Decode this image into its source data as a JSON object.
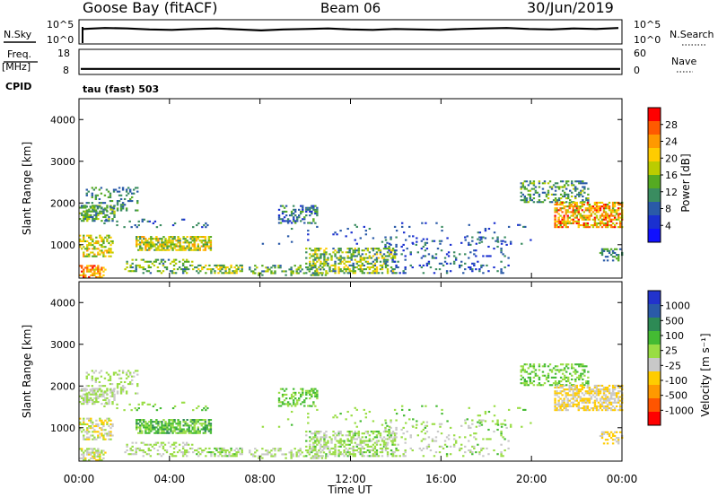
{
  "header": {
    "station": "Goose Bay (fitACF)",
    "beam": "Beam 06",
    "date": "30/Jun/2019"
  },
  "side_labels": {
    "nsky": "N.Sky",
    "nsearch": "N.Search",
    "freq_line1": "Freq.",
    "freq_line2": "[MHz]",
    "nave": "Nave",
    "cpid": "CPID",
    "cpid_value": "tau (fast) 503"
  },
  "colors": {
    "black": "#000000",
    "noise": "#000000"
  },
  "chart_data": [
    {
      "type": "line",
      "name": "noise-panel",
      "left_axis_ticks": [
        "10^5",
        "10^0"
      ],
      "right_axis_ticks": [
        "10^5",
        "10^0"
      ],
      "series": [
        {
          "values": [
            3.1,
            3.3,
            3.2,
            3.0,
            2.9,
            3.1,
            3.2,
            3.0,
            2.8,
            3.0,
            3.1,
            3.2,
            3.0,
            2.9,
            3.1,
            3.0,
            2.9,
            3.1,
            3.2,
            3.3,
            3.1,
            3.0,
            3.2,
            3.1,
            3.3
          ]
        }
      ],
      "ylim": [
        0,
        5
      ]
    },
    {
      "type": "line",
      "name": "frequency-panel",
      "left_axis_ticks": [
        "18",
        "8"
      ],
      "right_axis_ticks": [
        "60",
        "0"
      ],
      "ylim": [
        8,
        18
      ],
      "series": [
        {
          "values": [
            10.2,
            10.2,
            10.2,
            10.2,
            10.2,
            10.2,
            10.2,
            10.2,
            10.2,
            10.2,
            10.2,
            10.2,
            10.2
          ]
        }
      ]
    },
    {
      "type": "heatmap",
      "name": "power-panel",
      "ylabel": "Slant Range [km]",
      "yticks": [
        "4000",
        "3000",
        "2000",
        "1000"
      ],
      "ylim": [
        200,
        4500
      ],
      "colorbar_label": "Power [dB]",
      "colorbar_ticks": [
        "28",
        "24",
        "20",
        "16",
        "12",
        "8",
        "4"
      ],
      "colorbar_colors": [
        "#ff0000",
        "#ff5a00",
        "#ff9900",
        "#ffcc00",
        "#bbcc00",
        "#55aa22",
        "#3a8c60",
        "#2a5aa8",
        "#1a30d0",
        "#1010ff"
      ]
    },
    {
      "type": "heatmap",
      "name": "velocity-panel",
      "ylabel": "Slant Range [km]",
      "yticks": [
        "4000",
        "3000",
        "2000",
        "1000"
      ],
      "ylim": [
        200,
        4500
      ],
      "colorbar_label": "Velocity [m s⁻¹]",
      "colorbar_ticks": [
        "1000",
        "500",
        "100",
        "25",
        "-25",
        "-100",
        "-500",
        "-1000"
      ],
      "colorbar_colors": [
        "#2233cc",
        "#2a5aa8",
        "#2d8a55",
        "#44bb33",
        "#99dd44",
        "#c8c8c8",
        "#ffcc00",
        "#ff9900",
        "#ff5500",
        "#ff0000"
      ],
      "xlabel": "Time UT",
      "xticks": [
        "00:00",
        "04:00",
        "08:00",
        "12:00",
        "16:00",
        "20:00",
        "00:00"
      ],
      "xlim": [
        0,
        24
      ]
    }
  ],
  "scatter_regions": [
    {
      "t0": 0.0,
      "t1": 1.6,
      "r0": 1550,
      "r1": 1950,
      "density": 0.55,
      "pow": [
        0.25,
        0.55
      ],
      "vel": [
        0.4,
        0.6
      ]
    },
    {
      "t0": 0.3,
      "t1": 2.6,
      "r0": 1800,
      "r1": 2350,
      "density": 0.25,
      "pow": [
        0.2,
        0.5
      ],
      "vel": [
        0.45,
        0.6
      ]
    },
    {
      "t0": 0.0,
      "t1": 1.5,
      "r0": 700,
      "r1": 1200,
      "density": 0.45,
      "pow": [
        0.4,
        0.75
      ],
      "vel": [
        0.35,
        0.55
      ]
    },
    {
      "t0": 0.0,
      "t1": 1.2,
      "r0": 200,
      "r1": 500,
      "density": 0.6,
      "pow": [
        0.55,
        0.95
      ],
      "vel": [
        0.35,
        0.6
      ]
    },
    {
      "t0": 2.5,
      "t1": 5.8,
      "r0": 850,
      "r1": 1200,
      "density": 0.7,
      "pow": [
        0.35,
        0.75
      ],
      "vel": [
        0.5,
        0.75
      ]
    },
    {
      "t0": 2.0,
      "t1": 5.0,
      "r0": 300,
      "r1": 650,
      "density": 0.35,
      "pow": [
        0.25,
        0.6
      ],
      "vel": [
        0.4,
        0.6
      ]
    },
    {
      "t0": 5.0,
      "t1": 7.2,
      "r0": 300,
      "r1": 500,
      "density": 0.45,
      "pow": [
        0.3,
        0.7
      ],
      "vel": [
        0.45,
        0.62
      ]
    },
    {
      "t0": 8.8,
      "t1": 10.5,
      "r0": 1500,
      "r1": 1950,
      "density": 0.4,
      "pow": [
        0.15,
        0.45
      ],
      "vel": [
        0.55,
        0.65
      ]
    },
    {
      "t0": 10.0,
      "t1": 14.0,
      "r0": 300,
      "r1": 900,
      "density": 0.45,
      "pow": [
        0.25,
        0.7
      ],
      "vel": [
        0.45,
        0.62
      ]
    },
    {
      "t0": 7.5,
      "t1": 11.0,
      "r0": 250,
      "r1": 500,
      "density": 0.3,
      "pow": [
        0.25,
        0.6
      ],
      "vel": [
        0.4,
        0.6
      ]
    },
    {
      "t0": 13.5,
      "t1": 19.0,
      "r0": 300,
      "r1": 1200,
      "density": 0.12,
      "pow": [
        0.1,
        0.4
      ],
      "vel": [
        0.42,
        0.62
      ]
    },
    {
      "t0": 19.5,
      "t1": 22.5,
      "r0": 2000,
      "r1": 2500,
      "density": 0.4,
      "pow": [
        0.2,
        0.55
      ],
      "vel": [
        0.55,
        0.65
      ]
    },
    {
      "t0": 21.0,
      "t1": 24.0,
      "r0": 1400,
      "r1": 2000,
      "density": 0.6,
      "pow": [
        0.45,
        0.95
      ],
      "vel": [
        0.3,
        0.5
      ]
    },
    {
      "t0": 23.0,
      "t1": 24.0,
      "r0": 600,
      "r1": 900,
      "density": 0.4,
      "pow": [
        0.2,
        0.5
      ],
      "vel": [
        0.3,
        0.45
      ]
    },
    {
      "t0": 1.0,
      "t1": 6.0,
      "r0": 1400,
      "r1": 1600,
      "density": 0.08,
      "pow": [
        0.1,
        0.4
      ],
      "vel": [
        0.5,
        0.65
      ]
    },
    {
      "t0": 8.0,
      "t1": 20.0,
      "r0": 1000,
      "r1": 1500,
      "density": 0.04,
      "pow": [
        0.1,
        0.35
      ],
      "vel": [
        0.5,
        0.65
      ]
    }
  ]
}
